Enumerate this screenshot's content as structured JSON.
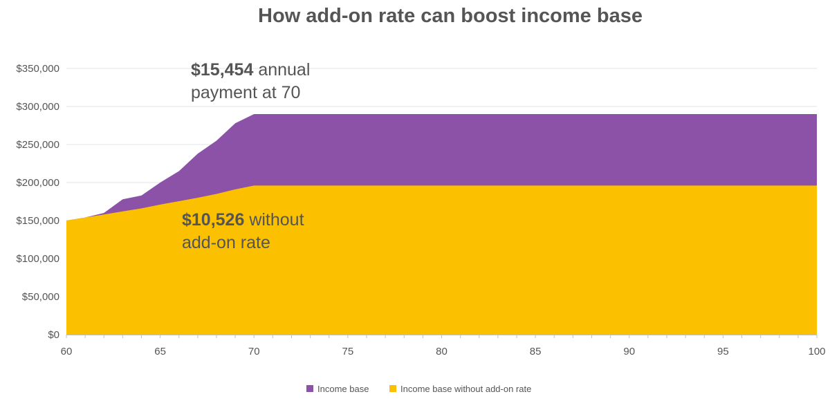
{
  "chart_data": {
    "type": "area",
    "title": "How add-on rate can boost income base",
    "xlabel": "",
    "ylabel": "",
    "xlim": [
      60,
      100
    ],
    "ylim": [
      0,
      350000
    ],
    "x_ticks": [
      "60",
      "65",
      "70",
      "75",
      "80",
      "85",
      "90",
      "95",
      "100"
    ],
    "y_ticks": [
      "$0",
      "$50,000",
      "$100,000",
      "$150,000",
      "$200,000",
      "$250,000",
      "$300,000",
      "$350,000"
    ],
    "grid": true,
    "legend_position": "bottom",
    "series": [
      {
        "name": "Income base",
        "color": "#8b52a7",
        "x": [
          60,
          61,
          62,
          63,
          64,
          65,
          66,
          67,
          68,
          69,
          70,
          100
        ],
        "values": [
          150000,
          154000,
          160000,
          178000,
          183000,
          200000,
          215000,
          238000,
          255000,
          278000,
          290000,
          290000
        ]
      },
      {
        "name": "Income base without add-on rate",
        "color": "#fbc000",
        "x": [
          60,
          61,
          62,
          63,
          64,
          65,
          66,
          67,
          68,
          69,
          70,
          100
        ],
        "values": [
          150000,
          154000,
          158000,
          162000,
          166000,
          171000,
          175500,
          180000,
          185000,
          191000,
          196000,
          196000
        ]
      }
    ],
    "annotations": [
      {
        "bold": "$15,454",
        "rest": " annual",
        "line2": "payment at 70"
      },
      {
        "bold": "$10,526",
        "rest": " without",
        "line2": "add-on rate"
      }
    ]
  }
}
